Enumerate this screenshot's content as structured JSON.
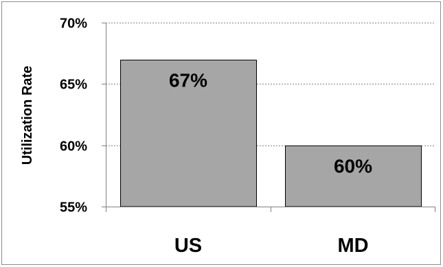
{
  "chart_data": {
    "type": "bar",
    "categories": [
      "US",
      "MD"
    ],
    "values": [
      67,
      60
    ],
    "data_labels": [
      "67%",
      "60%"
    ],
    "title": "",
    "xlabel": "",
    "ylabel": "Utilization Rate",
    "ylim": [
      55,
      70
    ],
    "yticks": [
      55,
      60,
      65,
      70
    ],
    "ytick_labels": [
      "55%",
      "60%",
      "65%",
      "70%"
    ],
    "grid": "horizontal dotted",
    "legend": "none",
    "colors": {
      "bar_fill": "#a6a6a6",
      "bar_stroke": "#000000",
      "grid": "#808080",
      "axis": "#808080"
    }
  }
}
